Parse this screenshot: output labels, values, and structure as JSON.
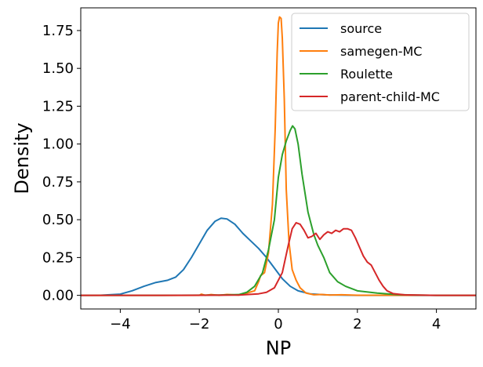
{
  "chart_data": {
    "type": "line",
    "title": "",
    "xlabel": "NP",
    "ylabel": "Density",
    "xlim": [
      -5,
      5
    ],
    "ylim": [
      -0.09,
      1.9
    ],
    "xticks": [
      -4,
      -2,
      0,
      2,
      4
    ],
    "xtick_labels": [
      "−4",
      "−2",
      "0",
      "2",
      "4"
    ],
    "yticks": [
      0.0,
      0.25,
      0.5,
      0.75,
      1.0,
      1.25,
      1.5,
      1.75
    ],
    "ytick_labels": [
      "0.00",
      "0.25",
      "0.50",
      "0.75",
      "1.00",
      "1.25",
      "1.50",
      "1.75"
    ],
    "grid": false,
    "legend_position": "top-right",
    "series": [
      {
        "name": "source",
        "color": "#1f77b4",
        "points": [
          [
            -5,
            0
          ],
          [
            -4.5,
            0.001
          ],
          [
            -4,
            0.008
          ],
          [
            -3.7,
            0.03
          ],
          [
            -3.4,
            0.06
          ],
          [
            -3.1,
            0.085
          ],
          [
            -2.8,
            0.1
          ],
          [
            -2.6,
            0.12
          ],
          [
            -2.4,
            0.17
          ],
          [
            -2.2,
            0.25
          ],
          [
            -2.0,
            0.34
          ],
          [
            -1.8,
            0.43
          ],
          [
            -1.6,
            0.49
          ],
          [
            -1.45,
            0.51
          ],
          [
            -1.3,
            0.505
          ],
          [
            -1.1,
            0.47
          ],
          [
            -0.9,
            0.41
          ],
          [
            -0.7,
            0.36
          ],
          [
            -0.5,
            0.31
          ],
          [
            -0.3,
            0.25
          ],
          [
            -0.1,
            0.18
          ],
          [
            0.1,
            0.11
          ],
          [
            0.3,
            0.06
          ],
          [
            0.5,
            0.03
          ],
          [
            0.8,
            0.01
          ],
          [
            1.2,
            0.003
          ],
          [
            2,
            0
          ],
          [
            5,
            0
          ]
        ]
      },
      {
        "name": "samegen-MC",
        "color": "#ff7f0e",
        "points": [
          [
            -5,
            0
          ],
          [
            -2,
            0
          ],
          [
            -1.95,
            0.008
          ],
          [
            -1.85,
            0
          ],
          [
            -1.7,
            0.005
          ],
          [
            -1.5,
            0
          ],
          [
            -1.3,
            0.006
          ],
          [
            -1.0,
            0.002
          ],
          [
            -0.8,
            0.015
          ],
          [
            -0.6,
            0.03
          ],
          [
            -0.5,
            0.09
          ],
          [
            -0.45,
            0.13
          ],
          [
            -0.35,
            0.15
          ],
          [
            -0.25,
            0.28
          ],
          [
            -0.15,
            0.6
          ],
          [
            -0.08,
            1.1
          ],
          [
            -0.03,
            1.6
          ],
          [
            0.0,
            1.8
          ],
          [
            0.03,
            1.84
          ],
          [
            0.07,
            1.83
          ],
          [
            0.1,
            1.7
          ],
          [
            0.15,
            1.3
          ],
          [
            0.2,
            0.7
          ],
          [
            0.27,
            0.35
          ],
          [
            0.35,
            0.17
          ],
          [
            0.45,
            0.1
          ],
          [
            0.55,
            0.05
          ],
          [
            0.7,
            0.015
          ],
          [
            0.9,
            0.004
          ],
          [
            1.1,
            0.006
          ],
          [
            1.3,
            0.002
          ],
          [
            1.6,
            0.004
          ],
          [
            2.0,
            0.001
          ],
          [
            5,
            0
          ]
        ]
      },
      {
        "name": "Roulette",
        "color": "#2ca02c",
        "points": [
          [
            -5,
            0
          ],
          [
            -3,
            0
          ],
          [
            -1.5,
            0.002
          ],
          [
            -1.0,
            0.005
          ],
          [
            -0.8,
            0.02
          ],
          [
            -0.6,
            0.06
          ],
          [
            -0.4,
            0.15
          ],
          [
            -0.25,
            0.3
          ],
          [
            -0.1,
            0.5
          ],
          [
            0.0,
            0.78
          ],
          [
            0.1,
            0.93
          ],
          [
            0.2,
            1.02
          ],
          [
            0.3,
            1.09
          ],
          [
            0.36,
            1.12
          ],
          [
            0.42,
            1.1
          ],
          [
            0.5,
            1.0
          ],
          [
            0.6,
            0.8
          ],
          [
            0.75,
            0.55
          ],
          [
            0.9,
            0.4
          ],
          [
            1.0,
            0.33
          ],
          [
            1.15,
            0.25
          ],
          [
            1.3,
            0.15
          ],
          [
            1.5,
            0.09
          ],
          [
            1.7,
            0.06
          ],
          [
            2.0,
            0.03
          ],
          [
            2.5,
            0.015
          ],
          [
            3.0,
            0.005
          ],
          [
            3.5,
            0.002
          ],
          [
            4,
            0
          ],
          [
            5,
            0
          ]
        ]
      },
      {
        "name": "parent-child-MC",
        "color": "#d62728",
        "points": [
          [
            -5,
            0
          ],
          [
            -2.9,
            0
          ],
          [
            -1,
            0.002
          ],
          [
            -0.5,
            0.01
          ],
          [
            -0.3,
            0.02
          ],
          [
            -0.1,
            0.05
          ],
          [
            0.1,
            0.15
          ],
          [
            0.25,
            0.33
          ],
          [
            0.35,
            0.44
          ],
          [
            0.45,
            0.48
          ],
          [
            0.55,
            0.47
          ],
          [
            0.65,
            0.43
          ],
          [
            0.75,
            0.38
          ],
          [
            0.85,
            0.39
          ],
          [
            0.95,
            0.41
          ],
          [
            1.05,
            0.37
          ],
          [
            1.15,
            0.4
          ],
          [
            1.25,
            0.42
          ],
          [
            1.35,
            0.41
          ],
          [
            1.45,
            0.43
          ],
          [
            1.55,
            0.42
          ],
          [
            1.65,
            0.44
          ],
          [
            1.75,
            0.44
          ],
          [
            1.85,
            0.43
          ],
          [
            1.95,
            0.38
          ],
          [
            2.05,
            0.32
          ],
          [
            2.15,
            0.26
          ],
          [
            2.25,
            0.22
          ],
          [
            2.35,
            0.2
          ],
          [
            2.45,
            0.15
          ],
          [
            2.55,
            0.1
          ],
          [
            2.65,
            0.06
          ],
          [
            2.75,
            0.03
          ],
          [
            2.9,
            0.012
          ],
          [
            3.2,
            0.003
          ],
          [
            4,
            0
          ],
          [
            5,
            0
          ]
        ]
      }
    ]
  }
}
